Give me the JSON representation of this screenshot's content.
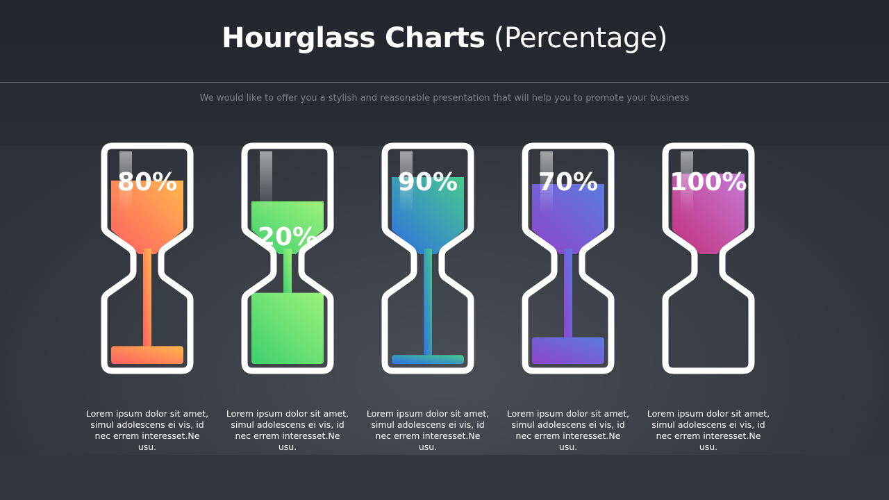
{
  "header": {
    "title_bold": "Hourglass Charts",
    "title_light": " (Percentage)",
    "subtitle": "We would like to offer you a stylish and reasonable presentation that will help you to promote your business"
  },
  "chart_data": {
    "type": "hourglass",
    "items": [
      {
        "value": 80,
        "label": "80%",
        "description": "Lorem ipsum dolor sit amet, simul adolescens ei vis, id nec errem interesset.Ne usu.",
        "color_a": "#ff5e62",
        "color_b": "#ffb74d"
      },
      {
        "value": 20,
        "label": "20%",
        "description": "Lorem ipsum dolor sit amet, simul adolescens ei vis, id nec errem interesset.Ne usu.",
        "color_a": "#3fcf6e",
        "color_b": "#9cf27a"
      },
      {
        "value": 90,
        "label": "90%",
        "description": "Lorem ipsum dolor sit amet, simul adolescens ei vis, id nec errem interesset.Ne usu.",
        "color_a": "#2f6fe0",
        "color_b": "#48c98e"
      },
      {
        "value": 70,
        "label": "70%",
        "description": "Lorem ipsum dolor sit amet, simul adolescens ei vis, id nec errem interesset.Ne usu.",
        "color_a": "#8e44c9",
        "color_b": "#5c7be0"
      },
      {
        "value": 100,
        "label": "100%",
        "description": "Lorem ipsum dolor sit amet, simul adolescens ei vis, id nec errem interesset.Ne usu.",
        "color_a": "#c2307a",
        "color_b": "#c47ad6"
      }
    ]
  }
}
